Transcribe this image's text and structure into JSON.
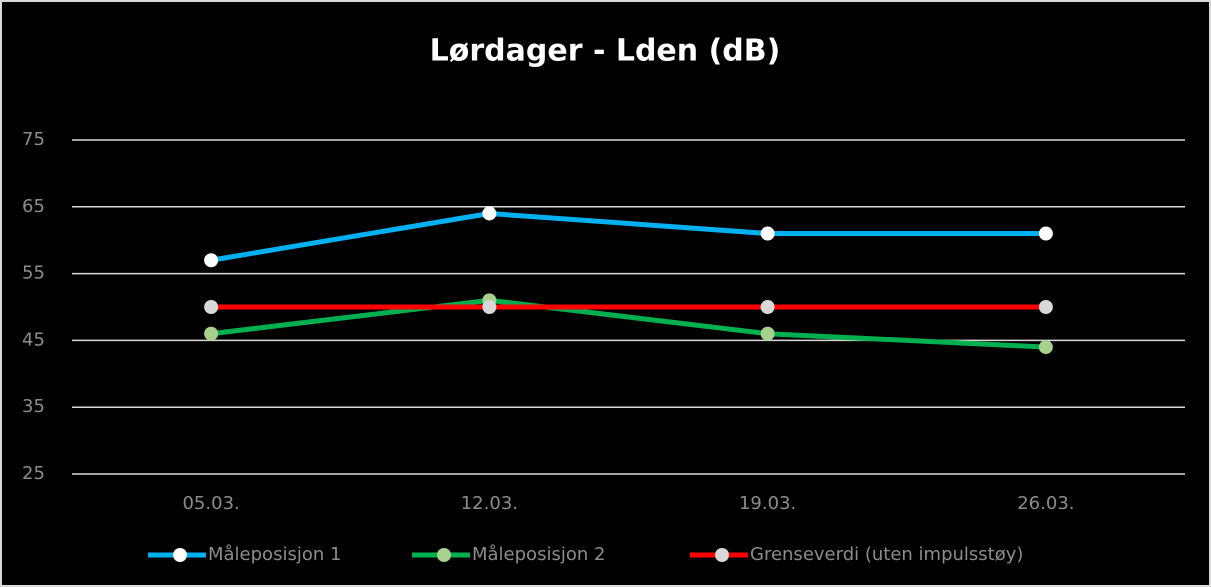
{
  "chart_data": {
    "type": "line",
    "title": "Lørdager - Lden (dB)",
    "categories": [
      "05.03.",
      "12.03.",
      "19.03.",
      "26.03."
    ],
    "series": [
      {
        "name": "Måleposisjon 1",
        "color": "#00b0f0",
        "marker_color": "#ffffff",
        "values": [
          57,
          64,
          61,
          61
        ]
      },
      {
        "name": "Måleposisjon 2",
        "color": "#00b050",
        "marker_color": "#a9d18e",
        "values": [
          46,
          51,
          46,
          44
        ]
      },
      {
        "name": "Grenseverdi (uten impulsstøy)",
        "color": "#ff0000",
        "marker_color": "#d9d9d9",
        "values": [
          50,
          50,
          50,
          50
        ]
      }
    ],
    "ylim": [
      25,
      75
    ],
    "yticks": [
      25,
      35,
      45,
      55,
      65,
      75
    ],
    "grid": true,
    "legend": "bottom"
  }
}
